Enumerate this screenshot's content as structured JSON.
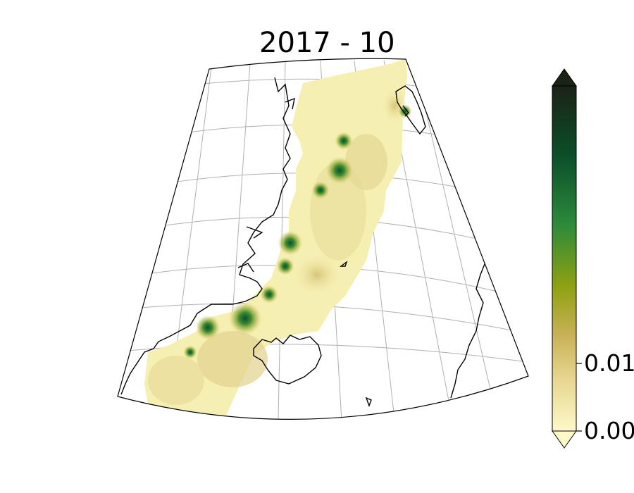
{
  "title": "2017 - 10",
  "colorbar": {
    "tick_labels": [
      "0.01",
      "0.00"
    ],
    "colors": [
      "#fdf9c8",
      "#d6bc6c",
      "#8ea112",
      "#2c8a3a",
      "#0b4e2a",
      "#1b2216"
    ]
  },
  "map": {
    "land_outline_color": "#000000",
    "graticule_color": "#b0b0b0",
    "low_value_color": "#f6efb2",
    "hotspot_color": "#0b5a3a"
  }
}
